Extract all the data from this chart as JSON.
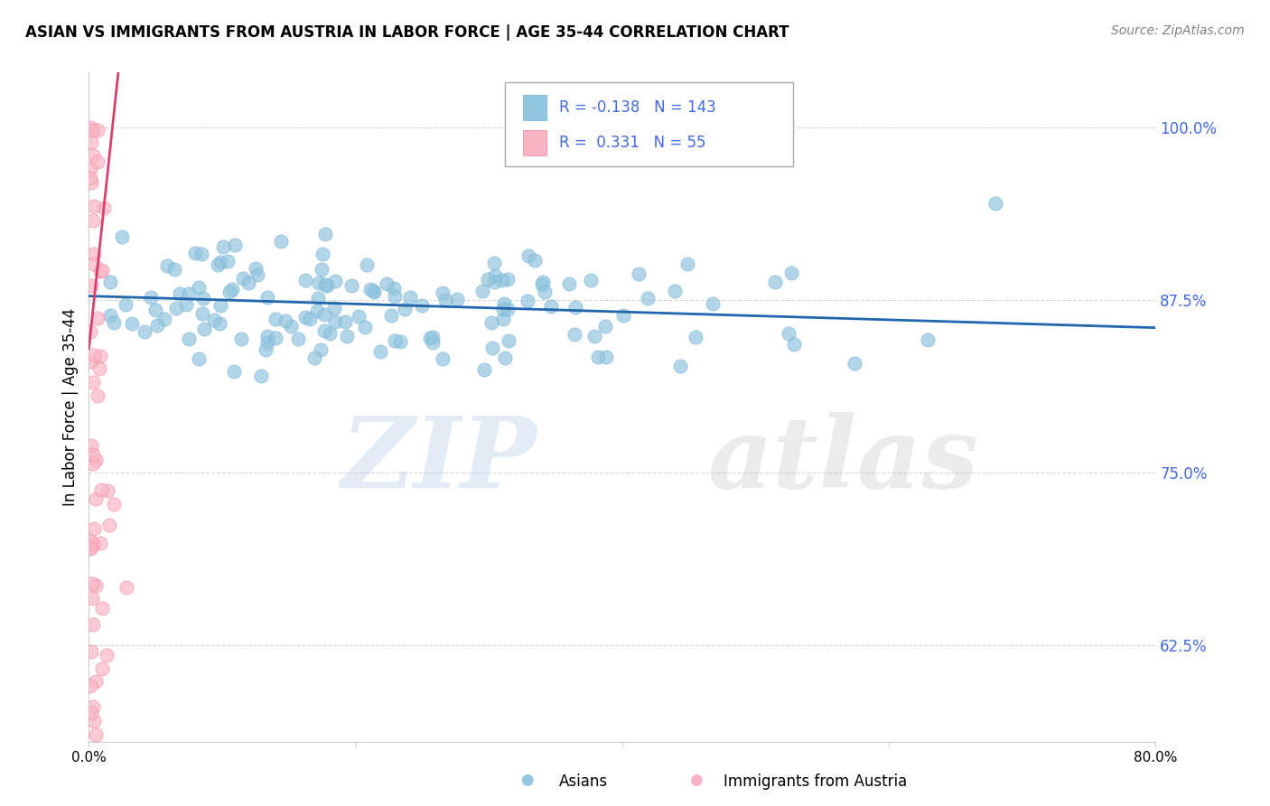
{
  "title": "ASIAN VS IMMIGRANTS FROM AUSTRIA IN LABOR FORCE | AGE 35-44 CORRELATION CHART",
  "source": "Source: ZipAtlas.com",
  "ylabel": "In Labor Force | Age 35-44",
  "yticks": [
    "62.5%",
    "75.0%",
    "87.5%",
    "100.0%"
  ],
  "ytick_vals": [
    0.625,
    0.75,
    0.875,
    1.0
  ],
  "xlim": [
    0.0,
    0.8
  ],
  "ylim": [
    0.555,
    1.04
  ],
  "blue_color": "#92c5de",
  "blue_edge_color": "#6baed6",
  "pink_color": "#f9b4c4",
  "pink_edge_color": "#f08098",
  "blue_line_color": "#2166ac",
  "pink_line_color": "#d6406a",
  "ytick_color": "#4169E1",
  "R_blue": -0.138,
  "N_blue": 143,
  "R_pink": 0.331,
  "N_pink": 55,
  "legend_label_blue": "Asians",
  "legend_label_pink": "Immigrants from Austria",
  "blue_line_x0": 0.0,
  "blue_line_x1": 0.8,
  "blue_line_y0": 0.878,
  "blue_line_y1": 0.855,
  "pink_line_x0": 0.0,
  "pink_line_x1": 0.022,
  "pink_line_y0": 0.84,
  "pink_line_y1": 1.04
}
